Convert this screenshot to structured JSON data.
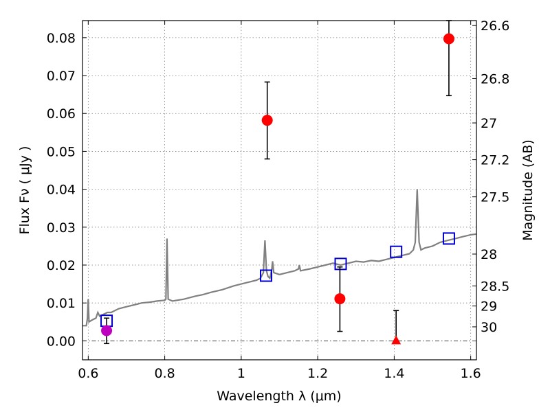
{
  "chart_data": {
    "type": "scatter",
    "xlabel": "Wavelength  λ (μm)",
    "ylabel": "Flux  Fν  ( μJy )",
    "ylabel_right": "Magnitude (AB)",
    "xlim": [
      0.585,
      1.615
    ],
    "ylim": [
      -0.005,
      0.0845
    ],
    "grid": true,
    "x_ticks": [
      {
        "value": 0.6,
        "label": "0.6"
      },
      {
        "value": 0.8,
        "label": "0.8"
      },
      {
        "value": 1.0,
        "label": "1"
      },
      {
        "value": 1.2,
        "label": "1.2"
      },
      {
        "value": 1.4,
        "label": "1.4"
      },
      {
        "value": 1.6,
        "label": "1.6"
      }
    ],
    "y_ticks": [
      {
        "value": 0.0,
        "label": "0.00"
      },
      {
        "value": 0.01,
        "label": "0.01"
      },
      {
        "value": 0.02,
        "label": "0.02"
      },
      {
        "value": 0.03,
        "label": "0.03"
      },
      {
        "value": 0.04,
        "label": "0.04"
      },
      {
        "value": 0.05,
        "label": "0.05"
      },
      {
        "value": 0.06,
        "label": "0.06"
      },
      {
        "value": 0.07,
        "label": "0.07"
      },
      {
        "value": 0.08,
        "label": "0.08"
      }
    ],
    "right_ticks": [
      {
        "flux": 0.0832,
        "label": "26.6"
      },
      {
        "flux": 0.0692,
        "label": "26.8"
      },
      {
        "flux": 0.0575,
        "label": "27"
      },
      {
        "flux": 0.0478,
        "label": "27.2"
      },
      {
        "flux": 0.038,
        "label": "27.5"
      },
      {
        "flux": 0.0229,
        "label": "28"
      },
      {
        "flux": 0.0145,
        "label": "28.5"
      },
      {
        "flux": 0.0092,
        "label": "29"
      },
      {
        "flux": 0.0037,
        "label": "30"
      }
    ],
    "template_spectrum": {
      "color": "#808080",
      "points": [
        [
          0.585,
          0.004
        ],
        [
          0.595,
          0.004
        ],
        [
          0.598,
          0.006
        ],
        [
          0.6,
          0.011
        ],
        [
          0.602,
          0.005
        ],
        [
          0.61,
          0.0055
        ],
        [
          0.62,
          0.006
        ],
        [
          0.625,
          0.0075
        ],
        [
          0.63,
          0.0065
        ],
        [
          0.64,
          0.007
        ],
        [
          0.65,
          0.0075
        ],
        [
          0.66,
          0.0075
        ],
        [
          0.67,
          0.008
        ],
        [
          0.68,
          0.0085
        ],
        [
          0.7,
          0.009
        ],
        [
          0.72,
          0.0095
        ],
        [
          0.74,
          0.01
        ],
        [
          0.76,
          0.0102
        ],
        [
          0.78,
          0.0105
        ],
        [
          0.8,
          0.0107
        ],
        [
          0.803,
          0.011
        ],
        [
          0.806,
          0.027
        ],
        [
          0.809,
          0.011
        ],
        [
          0.82,
          0.0105
        ],
        [
          0.85,
          0.011
        ],
        [
          0.88,
          0.0118
        ],
        [
          0.9,
          0.0122
        ],
        [
          0.92,
          0.0128
        ],
        [
          0.95,
          0.0135
        ],
        [
          0.98,
          0.0145
        ],
        [
          1.0,
          0.015
        ],
        [
          1.02,
          0.0155
        ],
        [
          1.04,
          0.016
        ],
        [
          1.05,
          0.0165
        ],
        [
          1.058,
          0.018
        ],
        [
          1.062,
          0.0265
        ],
        [
          1.066,
          0.0185
        ],
        [
          1.07,
          0.017
        ],
        [
          1.075,
          0.0165
        ],
        [
          1.08,
          0.019
        ],
        [
          1.082,
          0.021
        ],
        [
          1.085,
          0.018
        ],
        [
          1.1,
          0.0175
        ],
        [
          1.12,
          0.018
        ],
        [
          1.14,
          0.0185
        ],
        [
          1.15,
          0.019
        ],
        [
          1.152,
          0.02
        ],
        [
          1.155,
          0.0185
        ],
        [
          1.18,
          0.019
        ],
        [
          1.2,
          0.0195
        ],
        [
          1.22,
          0.02
        ],
        [
          1.24,
          0.0205
        ],
        [
          1.26,
          0.02
        ],
        [
          1.28,
          0.0205
        ],
        [
          1.3,
          0.021
        ],
        [
          1.32,
          0.0208
        ],
        [
          1.34,
          0.0212
        ],
        [
          1.36,
          0.021
        ],
        [
          1.38,
          0.0215
        ],
        [
          1.4,
          0.022
        ],
        [
          1.42,
          0.0225
        ],
        [
          1.44,
          0.023
        ],
        [
          1.45,
          0.024
        ],
        [
          1.455,
          0.026
        ],
        [
          1.46,
          0.04
        ],
        [
          1.465,
          0.026
        ],
        [
          1.47,
          0.024
        ],
        [
          1.48,
          0.0245
        ],
        [
          1.5,
          0.025
        ],
        [
          1.52,
          0.026
        ],
        [
          1.54,
          0.0265
        ],
        [
          1.56,
          0.027
        ],
        [
          1.58,
          0.0275
        ],
        [
          1.6,
          0.028
        ],
        [
          1.615,
          0.0282
        ]
      ]
    },
    "series": [
      {
        "marker": "square-open",
        "color": "#0000cc",
        "points": [
          {
            "x": 0.648,
            "y": 0.0053
          },
          {
            "x": 1.065,
            "y": 0.0172
          },
          {
            "x": 1.26,
            "y": 0.0203
          },
          {
            "x": 1.405,
            "y": 0.0235
          },
          {
            "x": 1.543,
            "y": 0.027
          }
        ]
      },
      {
        "marker": "circle",
        "color": "#ff0000",
        "points": [
          {
            "x": 1.068,
            "y": 0.0582,
            "err_low": 0.048,
            "err_high": 0.0683
          },
          {
            "x": 1.258,
            "y": 0.0111,
            "err_low": 0.0025,
            "err_high": 0.0195
          },
          {
            "x": 1.543,
            "y": 0.0797,
            "err_low": 0.0647,
            "err_high": 0.0845
          }
        ]
      },
      {
        "marker": "circle",
        "color": "#c000c0",
        "points": [
          {
            "x": 0.648,
            "y": 0.0027,
            "err_low": -0.0007,
            "err_high": 0.006
          }
        ]
      },
      {
        "marker": "triangle-up",
        "color": "#ff0000",
        "points": [
          {
            "x": 1.405,
            "y": 0.0,
            "err_low": 0.0,
            "err_high": 0.008
          }
        ]
      }
    ]
  }
}
